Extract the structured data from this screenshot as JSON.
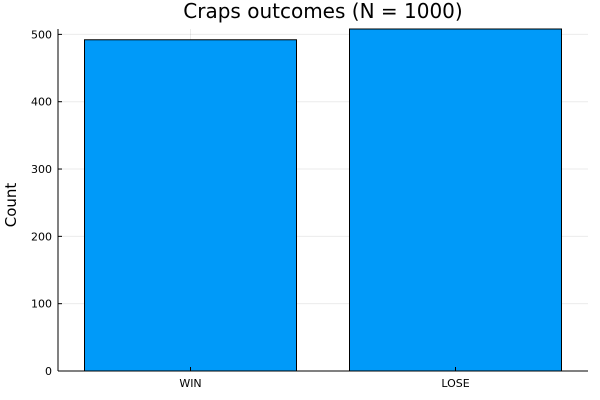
{
  "chart_data": {
    "type": "bar",
    "title": "Craps outcomes (N = 1000)",
    "xlabel": "",
    "ylabel": "Count",
    "categories": [
      "WIN",
      "LOSE"
    ],
    "values": [
      492,
      508
    ],
    "ylim": [
      0,
      508
    ],
    "yticks": [
      0,
      100,
      200,
      300,
      400,
      500
    ],
    "grid": true,
    "bar_color": "#009af9",
    "legend": "none"
  }
}
